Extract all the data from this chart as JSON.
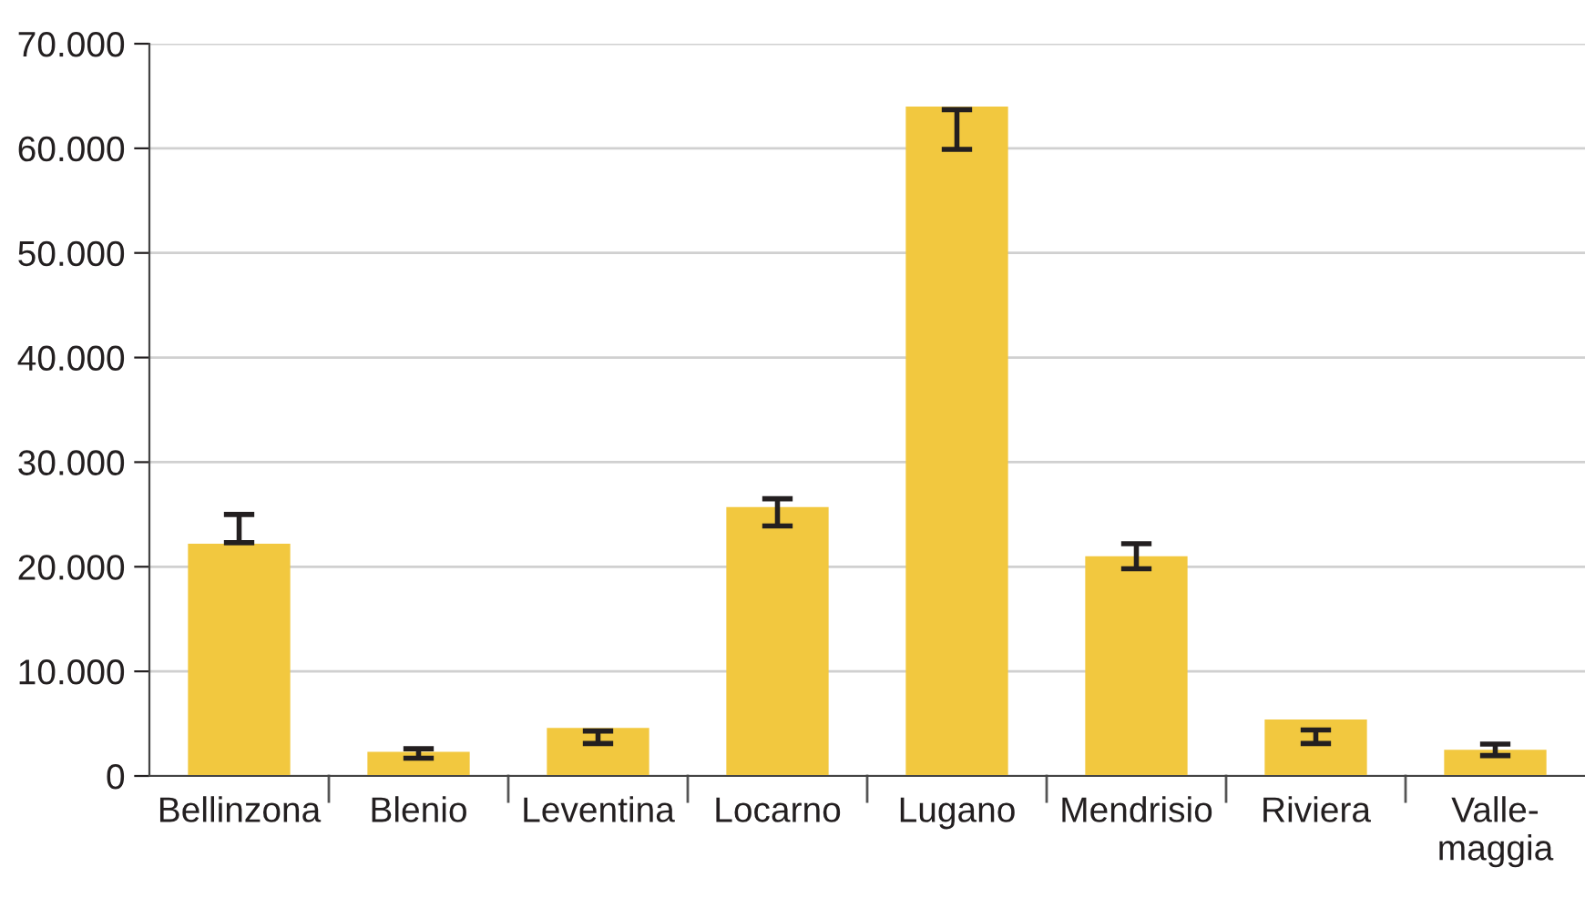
{
  "chart_data": {
    "type": "bar",
    "categories": [
      "Bellinzona",
      "Blenio",
      "Leventina",
      "Locarno",
      "Lugano",
      "Mendrisio",
      "Riviera",
      "Valle-\nmaggia"
    ],
    "values": [
      22200,
      2300,
      4600,
      25700,
      64000,
      21000,
      5400,
      2500
    ],
    "errors": [
      [
        22300,
        25000
      ],
      [
        1700,
        2600
      ],
      [
        3100,
        4300
      ],
      [
        23900,
        26500
      ],
      [
        59900,
        63700
      ],
      [
        19800,
        22200
      ],
      [
        3100,
        4400
      ],
      [
        1950,
        3050
      ]
    ],
    "color": "#f2c83f",
    "ylim": [
      0,
      70000
    ],
    "yticks": [
      0,
      {
        "value": 10000,
        "label": "10.000"
      },
      {
        "value": 20000,
        "label": "20.000"
      },
      {
        "value": 30000,
        "label": "30.000"
      },
      {
        "value": 40000,
        "label": "40.000"
      },
      {
        "value": 50000,
        "label": "50.000"
      },
      {
        "value": 60000,
        "label": "60.000"
      },
      {
        "value": 70000,
        "label": "70.000"
      }
    ],
    "grid": "y"
  }
}
